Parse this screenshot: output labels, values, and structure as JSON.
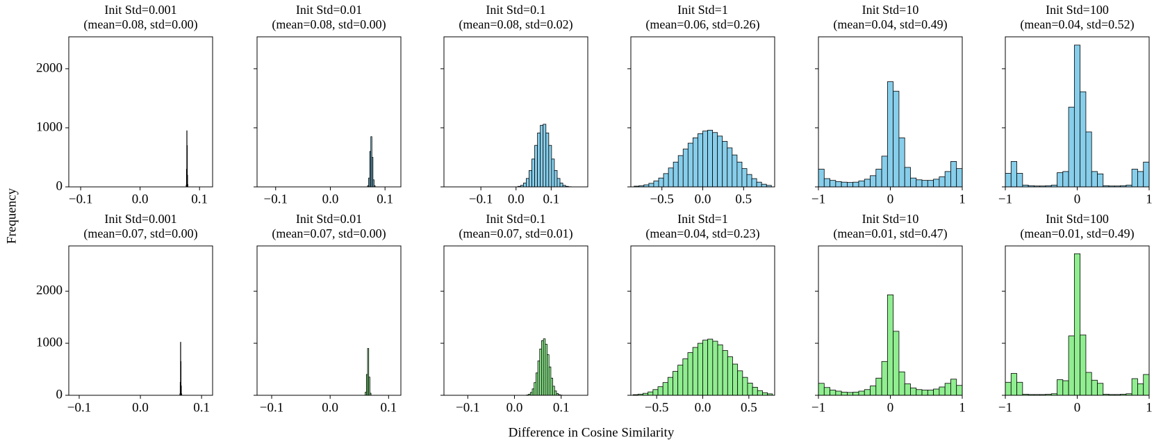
{
  "xlabel": "Difference in Cosine Similarity",
  "ylabel": "Frequency",
  "chart_data": [
    {
      "type": "histogram",
      "title": "Init Std=0.001",
      "subtitle": "(mean=0.08, std=0.00)",
      "color": "#87ceeb",
      "bins": [
        0.0775,
        0.078,
        0.0785,
        0.079,
        0.0795,
        0.08,
        0.0805
      ],
      "values": [
        30,
        300,
        950,
        700,
        200,
        40
      ],
      "xlim": [
        -0.12,
        0.122
      ],
      "xticks": [
        {
          "value": -0.1,
          "label": "−0.1"
        },
        {
          "value": 0,
          "label": "0.0"
        },
        0.1
      ],
      "ylim": [
        0,
        2540
      ],
      "yticks": [
        0,
        1000,
        2000
      ]
    },
    {
      "type": "histogram",
      "title": "Init Std=0.01",
      "subtitle": "(mean=0.08, std=0.00)",
      "color": "#87ceeb",
      "bins": [
        0.068,
        0.07,
        0.072,
        0.074,
        0.076,
        0.078,
        0.08,
        0.082
      ],
      "values": [
        20,
        150,
        600,
        850,
        500,
        120,
        20
      ],
      "xlim": [
        -0.134,
        0.129
      ],
      "xticks": [
        {
          "value": -0.1,
          "label": "−0.1"
        },
        {
          "value": 0,
          "label": "0.0"
        },
        0.1
      ],
      "ylim": [
        0,
        2540
      ],
      "yticks": [
        0,
        1000,
        2000
      ]
    },
    {
      "type": "histogram",
      "title": "Init Std=0.1",
      "subtitle": "(mean=0.08, std=0.02)",
      "color": "#87ceeb",
      "bins": [
        0.005,
        0.013,
        0.021,
        0.029,
        0.037,
        0.045,
        0.053,
        0.061,
        0.069,
        0.077,
        0.085,
        0.093,
        0.101,
        0.109,
        0.117,
        0.125,
        0.133,
        0.141,
        0.149,
        0.157,
        0.165
      ],
      "values": [
        9,
        26,
        65,
        143,
        278,
        472,
        703,
        913,
        1043,
        1060,
        913,
        703,
        472,
        278,
        143,
        65,
        26,
        9,
        3,
        1
      ],
      "xlim": [
        -0.205,
        0.204
      ],
      "xticks": [
        {
          "value": -0.1,
          "label": "−0.1"
        },
        {
          "value": 0,
          "label": "0.0"
        },
        0.1
      ],
      "ylim": [
        0,
        2540
      ],
      "yticks": [
        0,
        1000,
        2000
      ]
    },
    {
      "type": "histogram",
      "title": "Init Std=1",
      "subtitle": "(mean=0.06, std=0.26)",
      "color": "#87ceeb",
      "bins": [
        -0.84,
        -0.78,
        -0.72,
        -0.66,
        -0.6,
        -0.54,
        -0.48,
        -0.42,
        -0.36,
        -0.3,
        -0.24,
        -0.18,
        -0.12,
        -0.06,
        0,
        0.06,
        0.12,
        0.18,
        0.24,
        0.3,
        0.36,
        0.42,
        0.48,
        0.54,
        0.6,
        0.66,
        0.72,
        0.78,
        0.84
      ],
      "values": [
        12,
        20,
        35,
        60,
        100,
        150,
        225,
        320,
        420,
        530,
        640,
        740,
        830,
        900,
        945,
        960,
        920,
        860,
        770,
        660,
        540,
        420,
        310,
        210,
        140,
        80,
        45,
        25
      ],
      "xlim": [
        -0.88,
        0.88
      ],
      "xticks": [
        {
          "value": -0.5,
          "label": "−0.5"
        },
        {
          "value": 0,
          "label": "0.0"
        },
        0.5
      ],
      "ylim": [
        0,
        2540
      ],
      "yticks": [
        0,
        1000,
        2000
      ]
    },
    {
      "type": "histogram",
      "title": "Init Std=10",
      "subtitle": "(mean=0.04, std=0.49)",
      "color": "#87ceeb",
      "bins": [
        -1,
        -0.92,
        -0.84,
        -0.76,
        -0.68,
        -0.6,
        -0.52,
        -0.44,
        -0.36,
        -0.28,
        -0.2,
        -0.12,
        -0.04,
        0.04,
        0.12,
        0.2,
        0.28,
        0.36,
        0.44,
        0.52,
        0.6,
        0.68,
        0.76,
        0.84,
        0.92,
        1
      ],
      "values": [
        300,
        140,
        110,
        90,
        80,
        75,
        80,
        100,
        130,
        190,
        300,
        520,
        1780,
        1620,
        830,
        330,
        150,
        120,
        110,
        110,
        130,
        170,
        260,
        430,
        310
      ],
      "xlim": [
        -1,
        1
      ],
      "xticks": [
        {
          "value": -1,
          "label": "−1"
        },
        0,
        1
      ],
      "ylim": [
        0,
        2540
      ],
      "yticks": [
        0,
        1000,
        2000
      ]
    },
    {
      "type": "histogram",
      "title": "Init Std=100",
      "subtitle": "(mean=0.04, std=0.52)",
      "color": "#87ceeb",
      "bins": [
        -1,
        -0.92,
        -0.84,
        -0.76,
        -0.68,
        -0.6,
        -0.52,
        -0.44,
        -0.36,
        -0.28,
        -0.2,
        -0.12,
        -0.04,
        0.04,
        0.12,
        0.2,
        0.28,
        0.36,
        0.44,
        0.52,
        0.6,
        0.68,
        0.76,
        0.84,
        0.92,
        1
      ],
      "values": [
        230,
        430,
        230,
        30,
        20,
        15,
        15,
        20,
        30,
        240,
        260,
        1350,
        2400,
        1610,
        930,
        260,
        220,
        20,
        15,
        15,
        20,
        30,
        300,
        260,
        420
      ],
      "xlim": [
        -1,
        1
      ],
      "xticks": [
        {
          "value": -1,
          "label": "−1"
        },
        0,
        1
      ],
      "ylim": [
        0,
        2540
      ],
      "yticks": [
        0,
        1000,
        2000
      ]
    },
    {
      "type": "histogram",
      "title": "Init Std=0.001",
      "subtitle": "(mean=0.07, std=0.00)",
      "color": "#90ee90",
      "bins": [
        0.0645,
        0.065,
        0.0655,
        0.066,
        0.0665,
        0.067,
        0.0675
      ],
      "values": [
        30,
        250,
        1020,
        650,
        180,
        30
      ],
      "xlim": [
        -0.117,
        0.118
      ],
      "xticks": [
        {
          "value": -0.1,
          "label": "−0.1"
        },
        {
          "value": 0,
          "label": "0.0"
        },
        0.1
      ],
      "ylim": [
        0,
        2870
      ],
      "yticks": [
        0,
        1000,
        2000
      ]
    },
    {
      "type": "histogram",
      "title": "Init Std=0.01",
      "subtitle": "(mean=0.07, std=0.00)",
      "color": "#90ee90",
      "bins": [
        0.06,
        0.062,
        0.064,
        0.066,
        0.068,
        0.07
      ],
      "values": [
        60,
        400,
        900,
        350,
        40
      ],
      "xlim": [
        -0.125,
        0.121
      ],
      "xticks": [
        {
          "value": -0.1,
          "label": "−0.1"
        },
        {
          "value": 0,
          "label": "0.0"
        },
        0.1
      ],
      "ylim": [
        0,
        2870
      ],
      "yticks": [
        0,
        1000,
        2000
      ]
    },
    {
      "type": "histogram",
      "title": "Init Std=0.1",
      "subtitle": "(mean=0.07, std=0.01)",
      "color": "#90ee90",
      "bins": [
        0.026,
        0.03,
        0.034,
        0.038,
        0.042,
        0.046,
        0.05,
        0.054,
        0.058,
        0.062,
        0.066,
        0.07,
        0.074,
        0.078,
        0.082,
        0.086,
        0.09,
        0.094,
        0.098,
        0.102,
        0.106
      ],
      "values": [
        7,
        21,
        55,
        123,
        244,
        430,
        660,
        890,
        1050,
        1085,
        980,
        780,
        545,
        330,
        175,
        83,
        34,
        12,
        4,
        1
      ],
      "xlim": [
        -0.151,
        0.157
      ],
      "xticks": [
        {
          "value": -0.1,
          "label": "−0.1"
        },
        {
          "value": 0,
          "label": "0.0"
        },
        0.1
      ],
      "ylim": [
        0,
        2870
      ],
      "yticks": [
        0,
        1000,
        2000
      ]
    },
    {
      "type": "histogram",
      "title": "Init Std=1",
      "subtitle": "(mean=0.04, std=0.23)",
      "color": "#90ee90",
      "bins": [
        -0.756,
        -0.702,
        -0.648,
        -0.594,
        -0.54,
        -0.486,
        -0.432,
        -0.378,
        -0.324,
        -0.27,
        -0.216,
        -0.162,
        -0.108,
        -0.054,
        0,
        0.054,
        0.108,
        0.162,
        0.216,
        0.27,
        0.324,
        0.378,
        0.432,
        0.486,
        0.54,
        0.594,
        0.648,
        0.702,
        0.756
      ],
      "values": [
        12,
        22,
        38,
        65,
        110,
        165,
        245,
        345,
        460,
        580,
        700,
        820,
        920,
        1000,
        1060,
        1080,
        1040,
        970,
        860,
        740,
        600,
        470,
        345,
        235,
        155,
        90,
        50,
        28
      ],
      "xlim": [
        -0.78,
        0.78
      ],
      "xticks": [
        {
          "value": -0.5,
          "label": "−0.5"
        },
        {
          "value": 0,
          "label": "0.0"
        },
        0.5
      ],
      "ylim": [
        0,
        2870
      ],
      "yticks": [
        0,
        1000,
        2000
      ]
    },
    {
      "type": "histogram",
      "title": "Init Std=10",
      "subtitle": "(mean=0.01, std=0.47)",
      "color": "#90ee90",
      "bins": [
        -1,
        -0.92,
        -0.84,
        -0.76,
        -0.68,
        -0.6,
        -0.52,
        -0.44,
        -0.36,
        -0.28,
        -0.2,
        -0.12,
        -0.04,
        0.04,
        0.12,
        0.2,
        0.28,
        0.36,
        0.44,
        0.52,
        0.6,
        0.68,
        0.76,
        0.84,
        0.92,
        1
      ],
      "values": [
        230,
        150,
        100,
        80,
        60,
        55,
        60,
        80,
        110,
        180,
        330,
        650,
        1930,
        1230,
        450,
        220,
        140,
        110,
        100,
        100,
        120,
        160,
        230,
        310,
        190
      ],
      "xlim": [
        -1,
        1
      ],
      "xticks": [
        {
          "value": -1,
          "label": "−1"
        },
        0,
        1
      ],
      "ylim": [
        0,
        2870
      ],
      "yticks": [
        0,
        1000,
        2000
      ]
    },
    {
      "type": "histogram",
      "title": "Init Std=100",
      "subtitle": "(mean=0.01, std=0.49)",
      "color": "#90ee90",
      "bins": [
        -1,
        -0.92,
        -0.84,
        -0.76,
        -0.68,
        -0.6,
        -0.52,
        -0.44,
        -0.36,
        -0.28,
        -0.2,
        -0.12,
        -0.04,
        0.04,
        0.12,
        0.2,
        0.28,
        0.36,
        0.44,
        0.52,
        0.6,
        0.68,
        0.76,
        0.84,
        0.92,
        1
      ],
      "values": [
        250,
        420,
        250,
        20,
        15,
        15,
        15,
        20,
        30,
        300,
        280,
        1140,
        2720,
        1160,
        440,
        290,
        230,
        20,
        15,
        15,
        20,
        30,
        320,
        220,
        400
      ],
      "xlim": [
        -1,
        1
      ],
      "xticks": [
        {
          "value": -1,
          "label": "−1"
        },
        0,
        1
      ],
      "ylim": [
        0,
        2870
      ],
      "yticks": [
        0,
        1000,
        2000
      ]
    }
  ]
}
